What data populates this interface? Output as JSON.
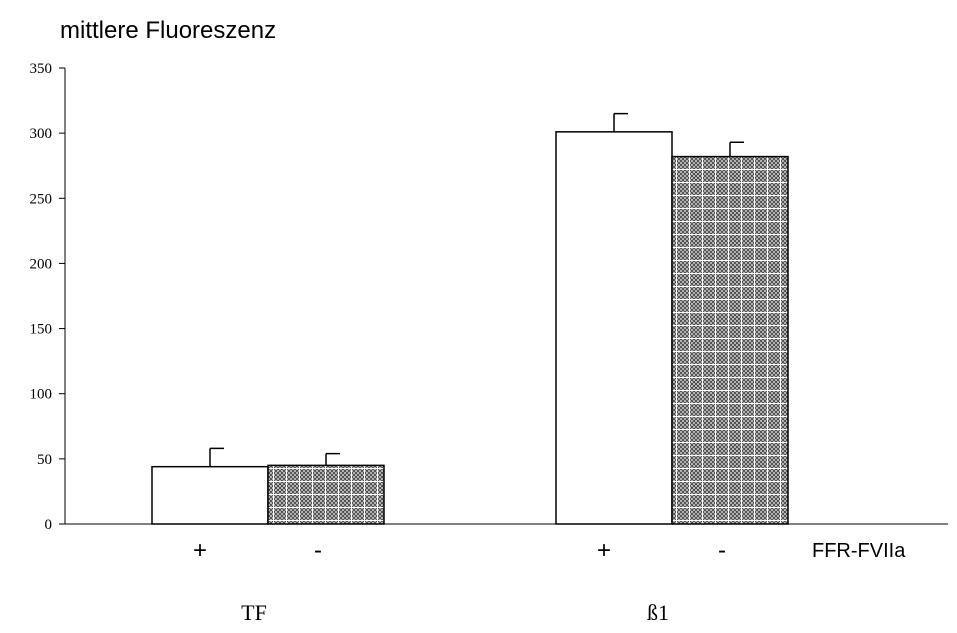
{
  "chart_data": {
    "type": "bar",
    "title": "mittlere Fluoreszenz",
    "xlabel": "FFR-FVIIa",
    "categories": [
      "TF",
      "ß1"
    ],
    "series": [
      {
        "name": "+",
        "color": "#ffffff",
        "values": [
          44,
          301
        ],
        "errors": [
          14,
          14
        ]
      },
      {
        "name": "-",
        "color": "#8c8c8c",
        "pattern": "checkered",
        "values": [
          45,
          282
        ],
        "errors": [
          9,
          11
        ]
      }
    ],
    "ylim": [
      0,
      350
    ],
    "yticks": [
      0,
      50,
      100,
      150,
      200,
      250,
      300,
      350
    ],
    "grid": false
  }
}
